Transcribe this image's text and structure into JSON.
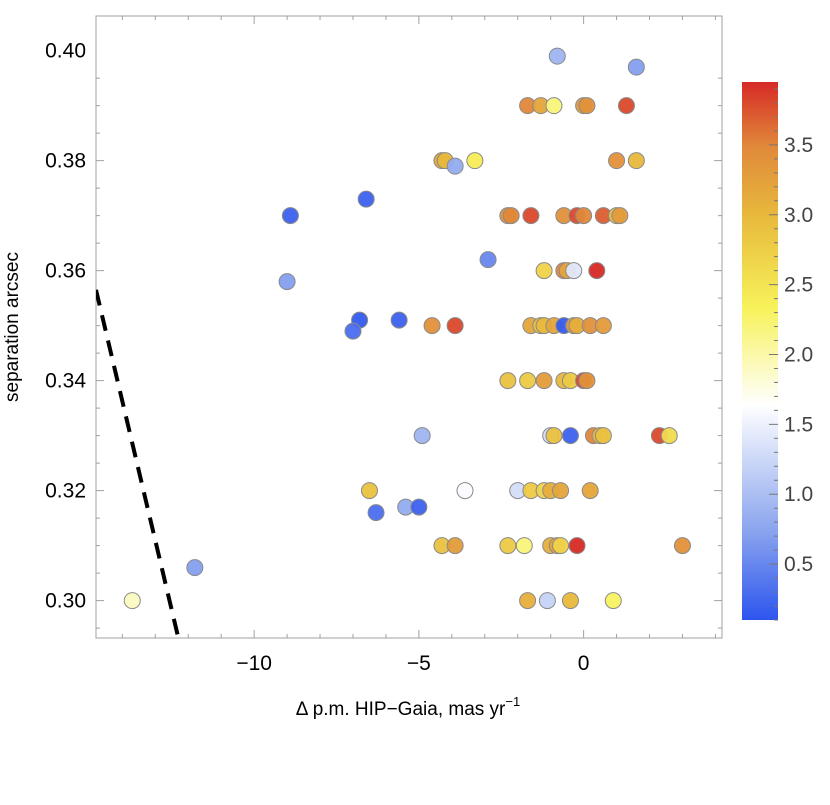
{
  "chart_data": {
    "type": "scatter",
    "xlabel": "Δ p.m. HIP−Gaia, mas yr",
    "xlabel_superscript": "−1",
    "ylabel": "separation arcsec",
    "xlim": [
      -14.8,
      4.2
    ],
    "ylim": [
      0.2932,
      0.4063
    ],
    "x_ticks": [
      -10,
      -5,
      0
    ],
    "x_tick_labels": [
      "−10",
      "−5",
      "0"
    ],
    "y_ticks": [
      0.3,
      0.32,
      0.34,
      0.36,
      0.38,
      0.4
    ],
    "y_tick_labels": [
      "0.30",
      "0.32",
      "0.34",
      "0.36",
      "0.38",
      "0.40"
    ],
    "grid": false,
    "colorbar": {
      "range": [
        0.1,
        3.95
      ],
      "ticks": [
        0.5,
        1.0,
        1.5,
        2.0,
        2.5,
        3.0,
        3.5
      ],
      "tick_labels": [
        "0.5",
        "1.0",
        "1.5",
        "2.0",
        "2.5",
        "3.0",
        "3.5"
      ],
      "colors": [
        "#2d55ee",
        "#8ca6ee",
        "#ffffff",
        "#f7f25a",
        "#e8b93c",
        "#e0893a",
        "#d62a26"
      ]
    },
    "dashed_line": {
      "points": [
        [
          -14.8,
          0.3565
        ],
        [
          -12.3,
          0.2932
        ]
      ],
      "color": "#000000"
    },
    "points": [
      {
        "x": -0.8,
        "y": 0.399,
        "c": 0.9
      },
      {
        "x": 1.6,
        "y": 0.397,
        "c": 0.7
      },
      {
        "x": -1.7,
        "y": 0.39,
        "c": 3.5
      },
      {
        "x": -1.3,
        "y": 0.39,
        "c": 3.2
      },
      {
        "x": -0.9,
        "y": 0.39,
        "c": 2.2
      },
      {
        "x": 0.0,
        "y": 0.39,
        "c": 3.3
      },
      {
        "x": 0.1,
        "y": 0.39,
        "c": 3.4
      },
      {
        "x": 1.3,
        "y": 0.39,
        "c": 3.8
      },
      {
        "x": -4.3,
        "y": 0.38,
        "c": 3.2
      },
      {
        "x": -4.2,
        "y": 0.38,
        "c": 3.0
      },
      {
        "x": -3.9,
        "y": 0.379,
        "c": 0.8
      },
      {
        "x": -3.3,
        "y": 0.38,
        "c": 2.4
      },
      {
        "x": 1.0,
        "y": 0.38,
        "c": 3.4
      },
      {
        "x": 1.6,
        "y": 0.38,
        "c": 3.0
      },
      {
        "x": -6.6,
        "y": 0.373,
        "c": 0.2
      },
      {
        "x": -8.9,
        "y": 0.37,
        "c": 0.2
      },
      {
        "x": -2.3,
        "y": 0.37,
        "c": 3.4
      },
      {
        "x": -2.2,
        "y": 0.37,
        "c": 3.5
      },
      {
        "x": -1.6,
        "y": 0.37,
        "c": 3.8
      },
      {
        "x": -0.6,
        "y": 0.37,
        "c": 3.4
      },
      {
        "x": -0.2,
        "y": 0.37,
        "c": 3.8
      },
      {
        "x": 0.0,
        "y": 0.37,
        "c": 3.5
      },
      {
        "x": 0.6,
        "y": 0.37,
        "c": 3.7
      },
      {
        "x": 1.0,
        "y": 0.37,
        "c": 2.9
      },
      {
        "x": 1.1,
        "y": 0.37,
        "c": 3.3
      },
      {
        "x": -2.9,
        "y": 0.362,
        "c": 0.5
      },
      {
        "x": -9.0,
        "y": 0.358,
        "c": 0.7
      },
      {
        "x": -1.2,
        "y": 0.36,
        "c": 2.7
      },
      {
        "x": -0.6,
        "y": 0.36,
        "c": 3.5
      },
      {
        "x": -0.5,
        "y": 0.36,
        "c": 3.2
      },
      {
        "x": -0.3,
        "y": 0.36,
        "c": 1.4
      },
      {
        "x": 0.4,
        "y": 0.36,
        "c": 3.95
      },
      {
        "x": -6.8,
        "y": 0.351,
        "c": 0.15
      },
      {
        "x": -7.0,
        "y": 0.349,
        "c": 0.3
      },
      {
        "x": -5.6,
        "y": 0.351,
        "c": 0.2
      },
      {
        "x": -4.6,
        "y": 0.35,
        "c": 3.4
      },
      {
        "x": -3.9,
        "y": 0.35,
        "c": 3.8
      },
      {
        "x": -1.6,
        "y": 0.35,
        "c": 3.2
      },
      {
        "x": -1.3,
        "y": 0.35,
        "c": 2.9
      },
      {
        "x": -1.2,
        "y": 0.35,
        "c": 3.0
      },
      {
        "x": -0.9,
        "y": 0.35,
        "c": 3.2
      },
      {
        "x": -0.6,
        "y": 0.35,
        "c": 0.15
      },
      {
        "x": -0.3,
        "y": 0.35,
        "c": 3.3
      },
      {
        "x": -0.2,
        "y": 0.35,
        "c": 3.1
      },
      {
        "x": 0.2,
        "y": 0.35,
        "c": 3.4
      },
      {
        "x": 0.6,
        "y": 0.35,
        "c": 3.3
      },
      {
        "x": -2.3,
        "y": 0.34,
        "c": 2.9
      },
      {
        "x": -1.7,
        "y": 0.34,
        "c": 2.8
      },
      {
        "x": -1.2,
        "y": 0.34,
        "c": 3.3
      },
      {
        "x": -0.6,
        "y": 0.34,
        "c": 3.0
      },
      {
        "x": -0.4,
        "y": 0.34,
        "c": 2.8
      },
      {
        "x": 0.0,
        "y": 0.34,
        "c": 3.8
      },
      {
        "x": 0.1,
        "y": 0.34,
        "c": 3.4
      },
      {
        "x": -4.9,
        "y": 0.33,
        "c": 0.9
      },
      {
        "x": -1.0,
        "y": 0.33,
        "c": 1.3
      },
      {
        "x": -0.9,
        "y": 0.33,
        "c": 2.9
      },
      {
        "x": -0.4,
        "y": 0.33,
        "c": 0.2
      },
      {
        "x": 0.3,
        "y": 0.33,
        "c": 3.5
      },
      {
        "x": 0.5,
        "y": 0.33,
        "c": 3.0
      },
      {
        "x": 0.6,
        "y": 0.33,
        "c": 2.9
      },
      {
        "x": 2.3,
        "y": 0.33,
        "c": 3.8
      },
      {
        "x": 2.6,
        "y": 0.33,
        "c": 2.6
      },
      {
        "x": -6.5,
        "y": 0.32,
        "c": 2.9
      },
      {
        "x": -3.6,
        "y": 0.32,
        "c": 1.6
      },
      {
        "x": -2.0,
        "y": 0.32,
        "c": 1.3
      },
      {
        "x": -1.6,
        "y": 0.32,
        "c": 2.8
      },
      {
        "x": -1.2,
        "y": 0.32,
        "c": 2.7
      },
      {
        "x": -1.0,
        "y": 0.32,
        "c": 3.1
      },
      {
        "x": -0.7,
        "y": 0.32,
        "c": 3.2
      },
      {
        "x": 0.2,
        "y": 0.32,
        "c": 3.2
      },
      {
        "x": -5.4,
        "y": 0.317,
        "c": 0.8
      },
      {
        "x": -5.0,
        "y": 0.317,
        "c": 0.2
      },
      {
        "x": -6.3,
        "y": 0.316,
        "c": 0.3
      },
      {
        "x": -4.3,
        "y": 0.31,
        "c": 2.9
      },
      {
        "x": -3.9,
        "y": 0.31,
        "c": 3.3
      },
      {
        "x": -2.3,
        "y": 0.31,
        "c": 2.8
      },
      {
        "x": -1.8,
        "y": 0.31,
        "c": 2.2
      },
      {
        "x": -1.0,
        "y": 0.31,
        "c": 3.1
      },
      {
        "x": -0.8,
        "y": 0.31,
        "c": 3.2
      },
      {
        "x": -0.7,
        "y": 0.31,
        "c": 2.7
      },
      {
        "x": -0.2,
        "y": 0.31,
        "c": 3.95
      },
      {
        "x": 3.0,
        "y": 0.31,
        "c": 3.4
      },
      {
        "x": -11.8,
        "y": 0.306,
        "c": 0.7
      },
      {
        "x": -13.7,
        "y": 0.3,
        "c": 1.9
      },
      {
        "x": -1.7,
        "y": 0.3,
        "c": 3.1
      },
      {
        "x": -1.1,
        "y": 0.3,
        "c": 1.2
      },
      {
        "x": -0.4,
        "y": 0.3,
        "c": 3.0
      },
      {
        "x": 0.9,
        "y": 0.3,
        "c": 2.3
      }
    ]
  }
}
